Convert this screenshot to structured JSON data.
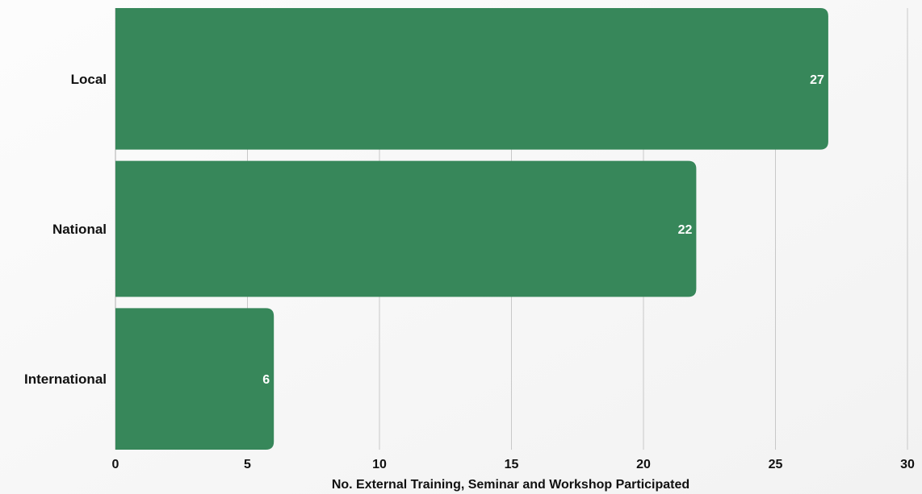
{
  "chart_data": {
    "type": "bar",
    "orientation": "horizontal",
    "categories": [
      "Local",
      "National",
      "International"
    ],
    "values": [
      27,
      22,
      6
    ],
    "data_labels": [
      "27",
      "22",
      "6"
    ],
    "title": "",
    "xlabel": "No. External Training, Seminar and Workshop Participated",
    "ylabel": "",
    "xlim": [
      0,
      30
    ],
    "xticks": [
      0,
      5,
      10,
      15,
      20,
      25,
      30
    ],
    "grid": true,
    "bar_color": "#37875a",
    "grid_color": "#c8c8c8",
    "background_color": "#f8f8f8"
  }
}
